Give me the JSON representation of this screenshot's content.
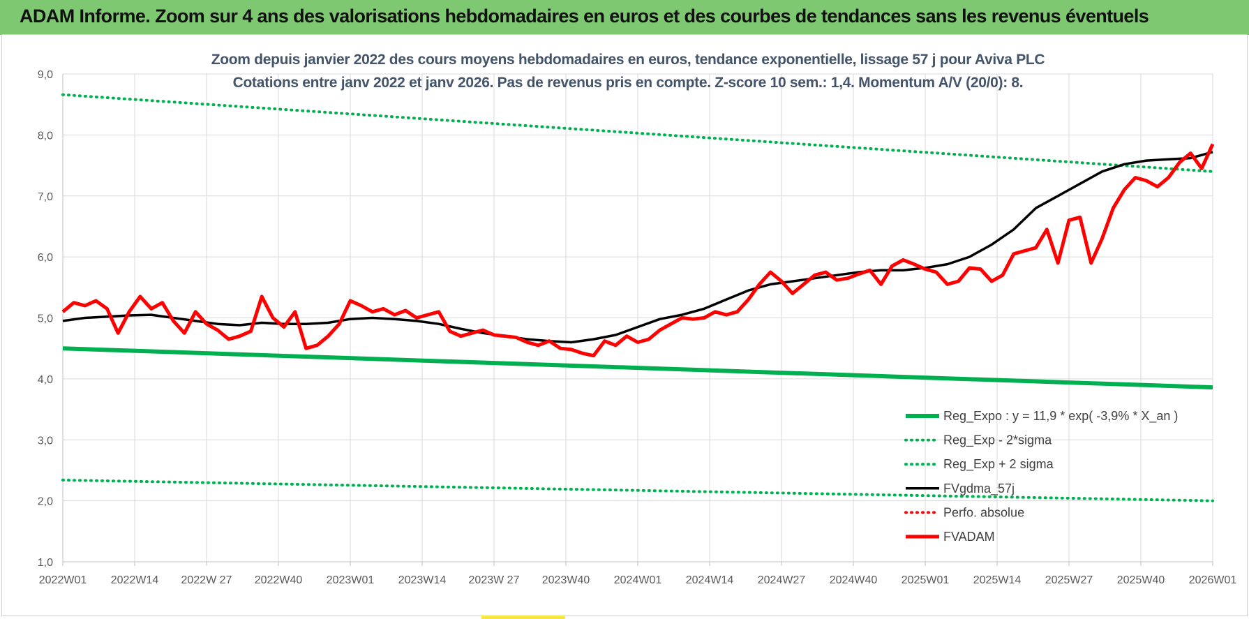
{
  "header": {
    "title": "ADAM Informe. Zoom sur 4 ans des valorisations hebdomadaires en euros et des courbes de tendances sans les revenus éventuels"
  },
  "colors": {
    "banner": "#7dc870",
    "reg_expo": "#00b050",
    "fvgdma": "#000000",
    "fvadam": "#ff0000",
    "perfo": "#ff0000"
  },
  "chart_data": {
    "type": "line",
    "title_line1": "Zoom depuis janvier 2022 des cours moyens hebdomadaires en euros, tendance exponentielle, lissage 57 j pour Aviva PLC",
    "title_line2": "Cotations entre janv 2022 et janv 2026. Pas de revenus pris en compte. Z-score 10 sem.: 1,4. Momentum A/V (20/0): 8.",
    "ylim": [
      1,
      9
    ],
    "yticks": [
      "1,0",
      "2,0",
      "3,0",
      "4,0",
      "5,0",
      "6,0",
      "7,0",
      "8,0",
      "9,0"
    ],
    "x_tick_labels": [
      "2022W01",
      "2022W14",
      "2022W 27",
      "2022W40",
      "2023W01",
      "2023W14",
      "2023W 27",
      "2023W40",
      "2024W01",
      "2024W14",
      "2024W27",
      "2024W40",
      "2025W01",
      "2025W14",
      "2025W27",
      "2025W40",
      "2026W01"
    ],
    "x_weeks_range": [
      0,
      208
    ],
    "grid": true,
    "legend_position": "bottom-right",
    "series": [
      {
        "name": "Reg_Expo : y = 11,9 * exp( -3,9% *  X_an )",
        "style": "solid-thick",
        "color": "#00b050",
        "x": [
          0,
          208
        ],
        "values": [
          4.5,
          3.86
        ]
      },
      {
        "name": "Reg_Exp - 2*sigma",
        "style": "dotted",
        "color": "#00b050",
        "x": [
          0,
          208
        ],
        "values": [
          2.34,
          2.0
        ]
      },
      {
        "name": "Reg_Exp + 2 sigma",
        "style": "dotted",
        "color": "#00b050",
        "x": [
          0,
          208
        ],
        "values": [
          8.66,
          7.4
        ]
      },
      {
        "name": "FVgdma_57j",
        "style": "solid",
        "color": "#000000",
        "x": [
          0,
          4,
          8,
          12,
          16,
          20,
          24,
          28,
          32,
          36,
          40,
          44,
          48,
          52,
          56,
          60,
          64,
          68,
          72,
          76,
          80,
          84,
          88,
          92,
          96,
          100,
          104,
          108,
          112,
          116,
          120,
          124,
          128,
          132,
          136,
          140,
          144,
          148,
          152,
          156,
          160,
          164,
          168,
          172,
          176,
          180,
          184,
          188,
          192,
          196,
          200,
          204,
          208
        ],
        "values": [
          4.95,
          5.0,
          5.02,
          5.04,
          5.05,
          5.0,
          4.95,
          4.9,
          4.88,
          4.92,
          4.9,
          4.9,
          4.92,
          4.98,
          5.0,
          4.98,
          4.95,
          4.9,
          4.82,
          4.75,
          4.7,
          4.65,
          4.62,
          4.6,
          4.65,
          4.72,
          4.85,
          4.98,
          5.05,
          5.15,
          5.3,
          5.45,
          5.55,
          5.6,
          5.65,
          5.7,
          5.75,
          5.78,
          5.78,
          5.82,
          5.88,
          6.0,
          6.2,
          6.45,
          6.8,
          7.0,
          7.2,
          7.4,
          7.52,
          7.58,
          7.6,
          7.62,
          7.72
        ]
      },
      {
        "name": "Perfo. absolue",
        "style": "dotted",
        "color": "#ff0000",
        "x": [],
        "values": []
      },
      {
        "name": "FVADAM",
        "style": "solid-thick",
        "color": "#ff0000",
        "x": [
          0,
          2,
          4,
          6,
          8,
          10,
          12,
          14,
          16,
          18,
          20,
          22,
          24,
          26,
          28,
          30,
          32,
          34,
          36,
          38,
          40,
          42,
          44,
          46,
          48,
          50,
          52,
          54,
          56,
          58,
          60,
          62,
          64,
          66,
          68,
          70,
          72,
          74,
          76,
          78,
          80,
          82,
          84,
          86,
          88,
          90,
          92,
          94,
          96,
          98,
          100,
          102,
          104,
          106,
          108,
          110,
          112,
          114,
          116,
          118,
          120,
          122,
          124,
          126,
          128,
          130,
          132,
          134,
          136,
          138,
          140,
          142,
          144,
          146,
          148,
          150,
          152,
          154,
          156,
          158,
          160,
          162,
          164,
          166,
          168,
          170,
          172,
          174,
          176,
          178,
          180,
          182,
          184,
          186,
          188,
          190,
          192,
          194,
          196,
          198,
          200,
          202,
          204,
          206,
          208
        ],
        "values": [
          5.1,
          5.25,
          5.2,
          5.28,
          5.15,
          4.75,
          5.1,
          5.35,
          5.15,
          5.25,
          4.95,
          4.75,
          5.1,
          4.9,
          4.8,
          4.65,
          4.7,
          4.78,
          5.35,
          5.0,
          4.85,
          5.1,
          4.5,
          4.55,
          4.7,
          4.9,
          5.28,
          5.2,
          5.1,
          5.15,
          5.05,
          5.12,
          5.0,
          5.05,
          5.1,
          4.78,
          4.7,
          4.75,
          4.8,
          4.72,
          4.7,
          4.68,
          4.6,
          4.55,
          4.62,
          4.5,
          4.48,
          4.42,
          4.38,
          4.62,
          4.55,
          4.7,
          4.6,
          4.65,
          4.8,
          4.9,
          5.0,
          4.98,
          5.0,
          5.1,
          5.05,
          5.1,
          5.3,
          5.55,
          5.75,
          5.6,
          5.4,
          5.55,
          5.7,
          5.75,
          5.62,
          5.65,
          5.72,
          5.78,
          5.55,
          5.85,
          5.95,
          5.88,
          5.8,
          5.75,
          5.55,
          5.6,
          5.82,
          5.8,
          5.6,
          5.7,
          6.05,
          6.1,
          6.15,
          6.45,
          5.9,
          6.6,
          6.65,
          5.9,
          6.3,
          6.8,
          7.1,
          7.3,
          7.25,
          7.15,
          7.3,
          7.55,
          7.7,
          7.45,
          7.85
        ]
      }
    ]
  }
}
